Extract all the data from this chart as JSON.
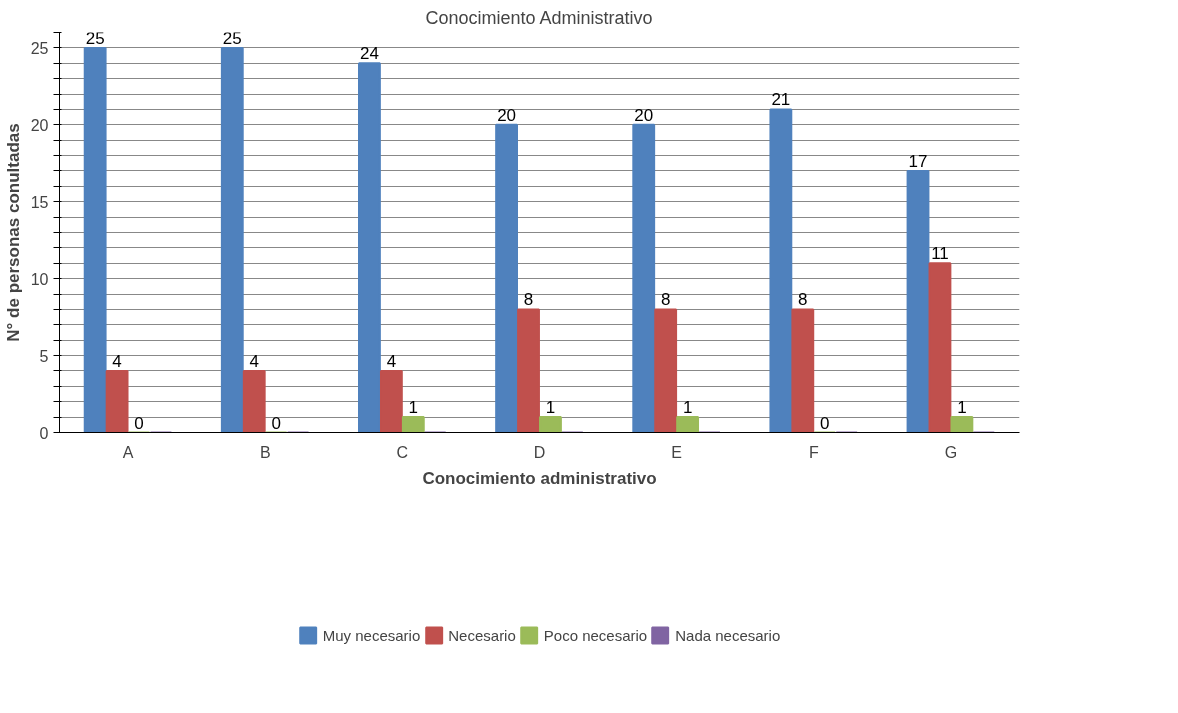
{
  "chart_data": {
    "type": "bar",
    "title": "Conocimiento Administrativo",
    "xlabel": "Conocimiento administrativo",
    "ylabel": "N° de personas conultadas",
    "categories": [
      "A",
      "B",
      "C",
      "D",
      "E",
      "F",
      "G"
    ],
    "series": [
      {
        "name": "Muy necesario",
        "color": "#4f81bd",
        "values": [
          25,
          25,
          24,
          20,
          20,
          21,
          17
        ],
        "value_labels": [
          "25",
          "25",
          "24",
          "20",
          "20",
          "21",
          "17"
        ]
      },
      {
        "name": "Necesario",
        "color": "#c0504d",
        "values": [
          4,
          4,
          4,
          8,
          8,
          8,
          11
        ],
        "value_labels": [
          "4",
          "4",
          "4",
          "8",
          "8",
          "8",
          "11"
        ]
      },
      {
        "name": "Poco necesario",
        "color": "#9bbb59",
        "values": [
          0,
          0,
          1,
          1,
          1,
          0,
          1
        ],
        "value_labels": [
          "0",
          "0",
          "1",
          "1",
          "1",
          "0",
          "1"
        ]
      },
      {
        "name": "Nada necesario",
        "color": "#8064a2",
        "values": [
          0,
          0,
          0,
          0,
          0,
          0,
          0
        ],
        "value_labels": [
          null,
          null,
          null,
          null,
          null,
          null,
          null
        ]
      }
    ],
    "ylim": [
      0,
      26
    ],
    "yticks": [
      0,
      {
        "value": 1,
        "label": null
      },
      {
        "value": 2,
        "label": null
      },
      {
        "value": 3,
        "label": null
      },
      {
        "value": 4,
        "label": null
      },
      5,
      {
        "value": 6,
        "label": null
      },
      {
        "value": 7,
        "label": null
      },
      {
        "value": 8,
        "label": null
      },
      {
        "value": 9,
        "label": null
      },
      10,
      {
        "value": 11,
        "label": null
      },
      {
        "value": 12,
        "label": null
      },
      {
        "value": 13,
        "label": null
      },
      {
        "value": 14,
        "label": null
      },
      15,
      {
        "value": 16,
        "label": null
      },
      {
        "value": 17,
        "label": null
      },
      {
        "value": 18,
        "label": null
      },
      {
        "value": 19,
        "label": null
      },
      20,
      {
        "value": 21,
        "label": null
      },
      {
        "value": 22,
        "label": null
      },
      {
        "value": 23,
        "label": null
      },
      {
        "value": 24,
        "label": null
      },
      25,
      {
        "value": 26,
        "label": null
      }
    ],
    "grid": "y",
    "legend": "bottom"
  }
}
